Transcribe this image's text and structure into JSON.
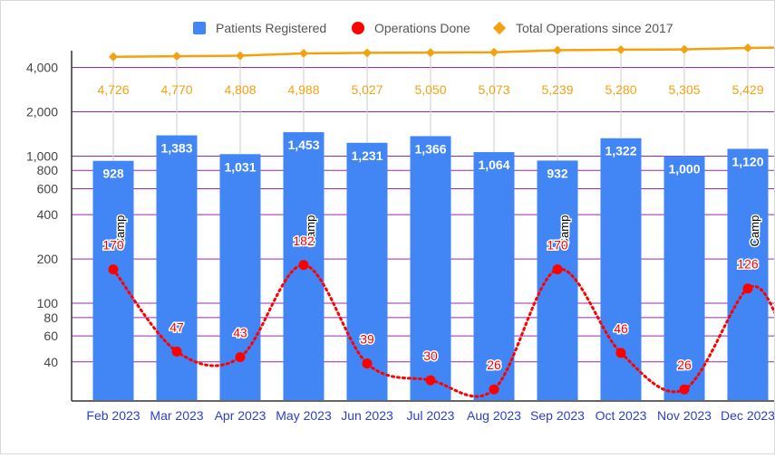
{
  "chart_data": {
    "type": "bar",
    "yscale": "log",
    "ylim": [
      22,
      5200
    ],
    "categories": [
      "Feb 2023",
      "Mar 2023",
      "Apr 2023",
      "May 2023",
      "Jun 2023",
      "Jul 2023",
      "Aug 2023",
      "Sep 2023",
      "Oct 2023",
      "Nov 2023",
      "Dec 2023"
    ],
    "yticks": [
      40,
      60,
      80,
      100,
      200,
      400,
      600,
      800,
      1000,
      2000,
      4000
    ],
    "ytick_labels": [
      "40",
      "60",
      "80",
      "100",
      "200",
      "400",
      "600",
      "800",
      "1,000",
      "2,000",
      "4,000"
    ],
    "legend_position": "top",
    "grid": true,
    "series": [
      {
        "name": "Patients Registered",
        "kind": "bar",
        "color": "#4285f4",
        "values": [
          928,
          1383,
          1031,
          1453,
          1231,
          1366,
          1064,
          932,
          1322,
          1000,
          1120
        ],
        "labels": [
          "928",
          "1,383",
          "1,031",
          "1,453",
          "1,231",
          "1,366",
          "1,064",
          "932",
          "1,322",
          "1,000",
          "1,120"
        ]
      },
      {
        "name": "Operations Done",
        "kind": "dotted-smooth-line",
        "color": "#ff0000",
        "values": [
          170,
          47,
          43,
          182,
          39,
          30,
          26,
          170,
          46,
          26,
          126
        ],
        "labels": [
          "170",
          "47",
          "43",
          "182",
          "39",
          "30",
          "26",
          "170",
          "46",
          "26",
          "126"
        ]
      },
      {
        "name": "Total Operations since 2017",
        "kind": "line-diamond",
        "color": "#f4a00f",
        "values": [
          4726,
          4770,
          4808,
          4988,
          5027,
          5050,
          5073,
          5239,
          5280,
          5305,
          5429
        ],
        "labels": [
          "4,726",
          "4,770",
          "4,808",
          "4,988",
          "5,027",
          "5,050",
          "5,073",
          "5,239",
          "5,280",
          "5,305",
          "5,429"
        ]
      }
    ],
    "annotations": [
      {
        "category": "Feb 2023",
        "text": "Camp"
      },
      {
        "category": "May 2023",
        "text": "Camp"
      },
      {
        "category": "Sep 2023",
        "text": "Camp"
      },
      {
        "category": "Dec 2023",
        "text": "Camp"
      }
    ],
    "colors": {
      "gridline": "#9c27b0",
      "tick_text": "#444444",
      "category_text": "#2b3fc8",
      "axis": "#333333"
    }
  }
}
